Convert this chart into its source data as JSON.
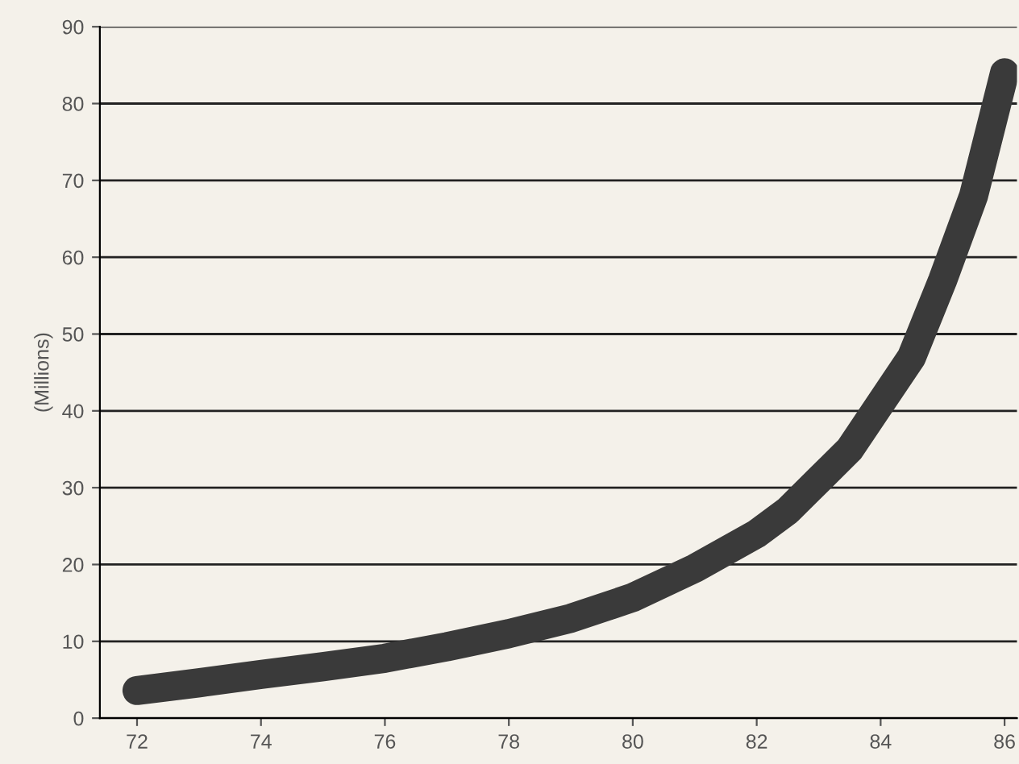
{
  "chart_data": {
    "type": "line",
    "ylabel": "(Millions)",
    "x": [
      72,
      73,
      74,
      75,
      76,
      77,
      78,
      79,
      80,
      81,
      82,
      82.5,
      83,
      83.5,
      84,
      84.5,
      85,
      85.5,
      86
    ],
    "series": [
      {
        "color": "#3a3a3a",
        "values": [
          3.6,
          4.6,
          5.7,
          6.7,
          7.8,
          9.3,
          11,
          13,
          15.7,
          19.5,
          24,
          27,
          31,
          35,
          41,
          47,
          57,
          68,
          84
        ]
      }
    ],
    "xlim": [
      71.4,
      86.2
    ],
    "xticks": [
      72,
      74,
      76,
      78,
      80,
      82,
      84,
      86
    ],
    "ylim": [
      0,
      90
    ],
    "yticks": [
      0,
      10,
      20,
      30,
      40,
      50,
      60,
      70,
      80,
      90
    ],
    "grid": "y",
    "line_style": "solid",
    "legend": false
  }
}
